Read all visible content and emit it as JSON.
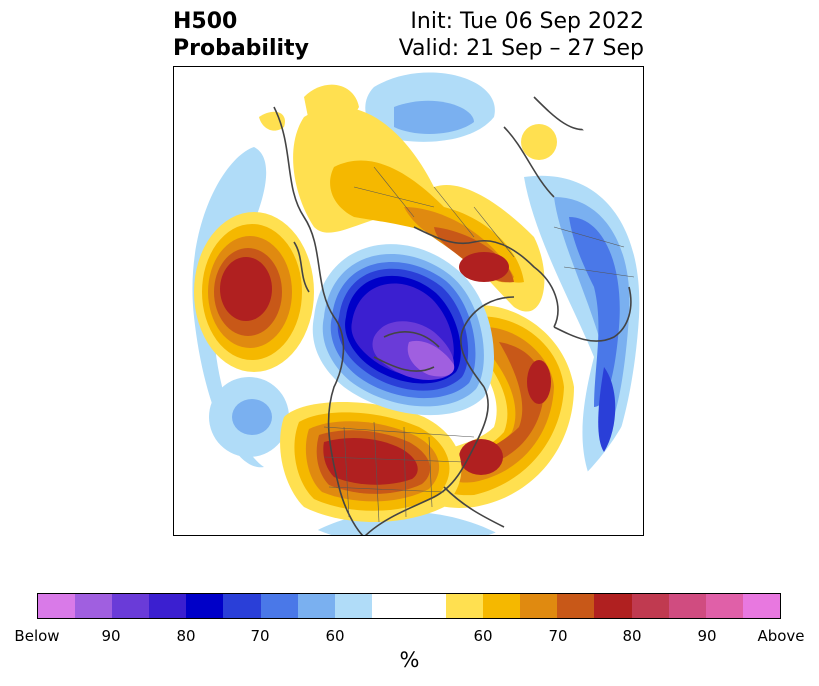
{
  "title": {
    "left_line1": "H500",
    "left_line2": "Probability",
    "right_line1": "Init: Tue 06 Sep 2022",
    "right_line2": "Valid: 21 Sep – 27 Sep"
  },
  "colorbar": {
    "colors": [
      "#d97ae8",
      "#a05fe0",
      "#6a3bd8",
      "#3b1fd0",
      "#0000c8",
      "#2a3fd8",
      "#4a78e8",
      "#7ab0f0",
      "#b0dcf8",
      "#ffffff",
      "#ffffff",
      "#ffe050",
      "#f5b800",
      "#e08a10",
      "#c85818",
      "#b02020",
      "#c03a50",
      "#d04c80",
      "#e060a8",
      "#e878e0"
    ],
    "tick_labels": [
      "Below",
      "90",
      "80",
      "70",
      "60",
      "60",
      "70",
      "80",
      "90",
      "Above"
    ],
    "unit": "%"
  },
  "legend_scale": {
    "below_category": "Below",
    "above_category": "Above"
  }
}
